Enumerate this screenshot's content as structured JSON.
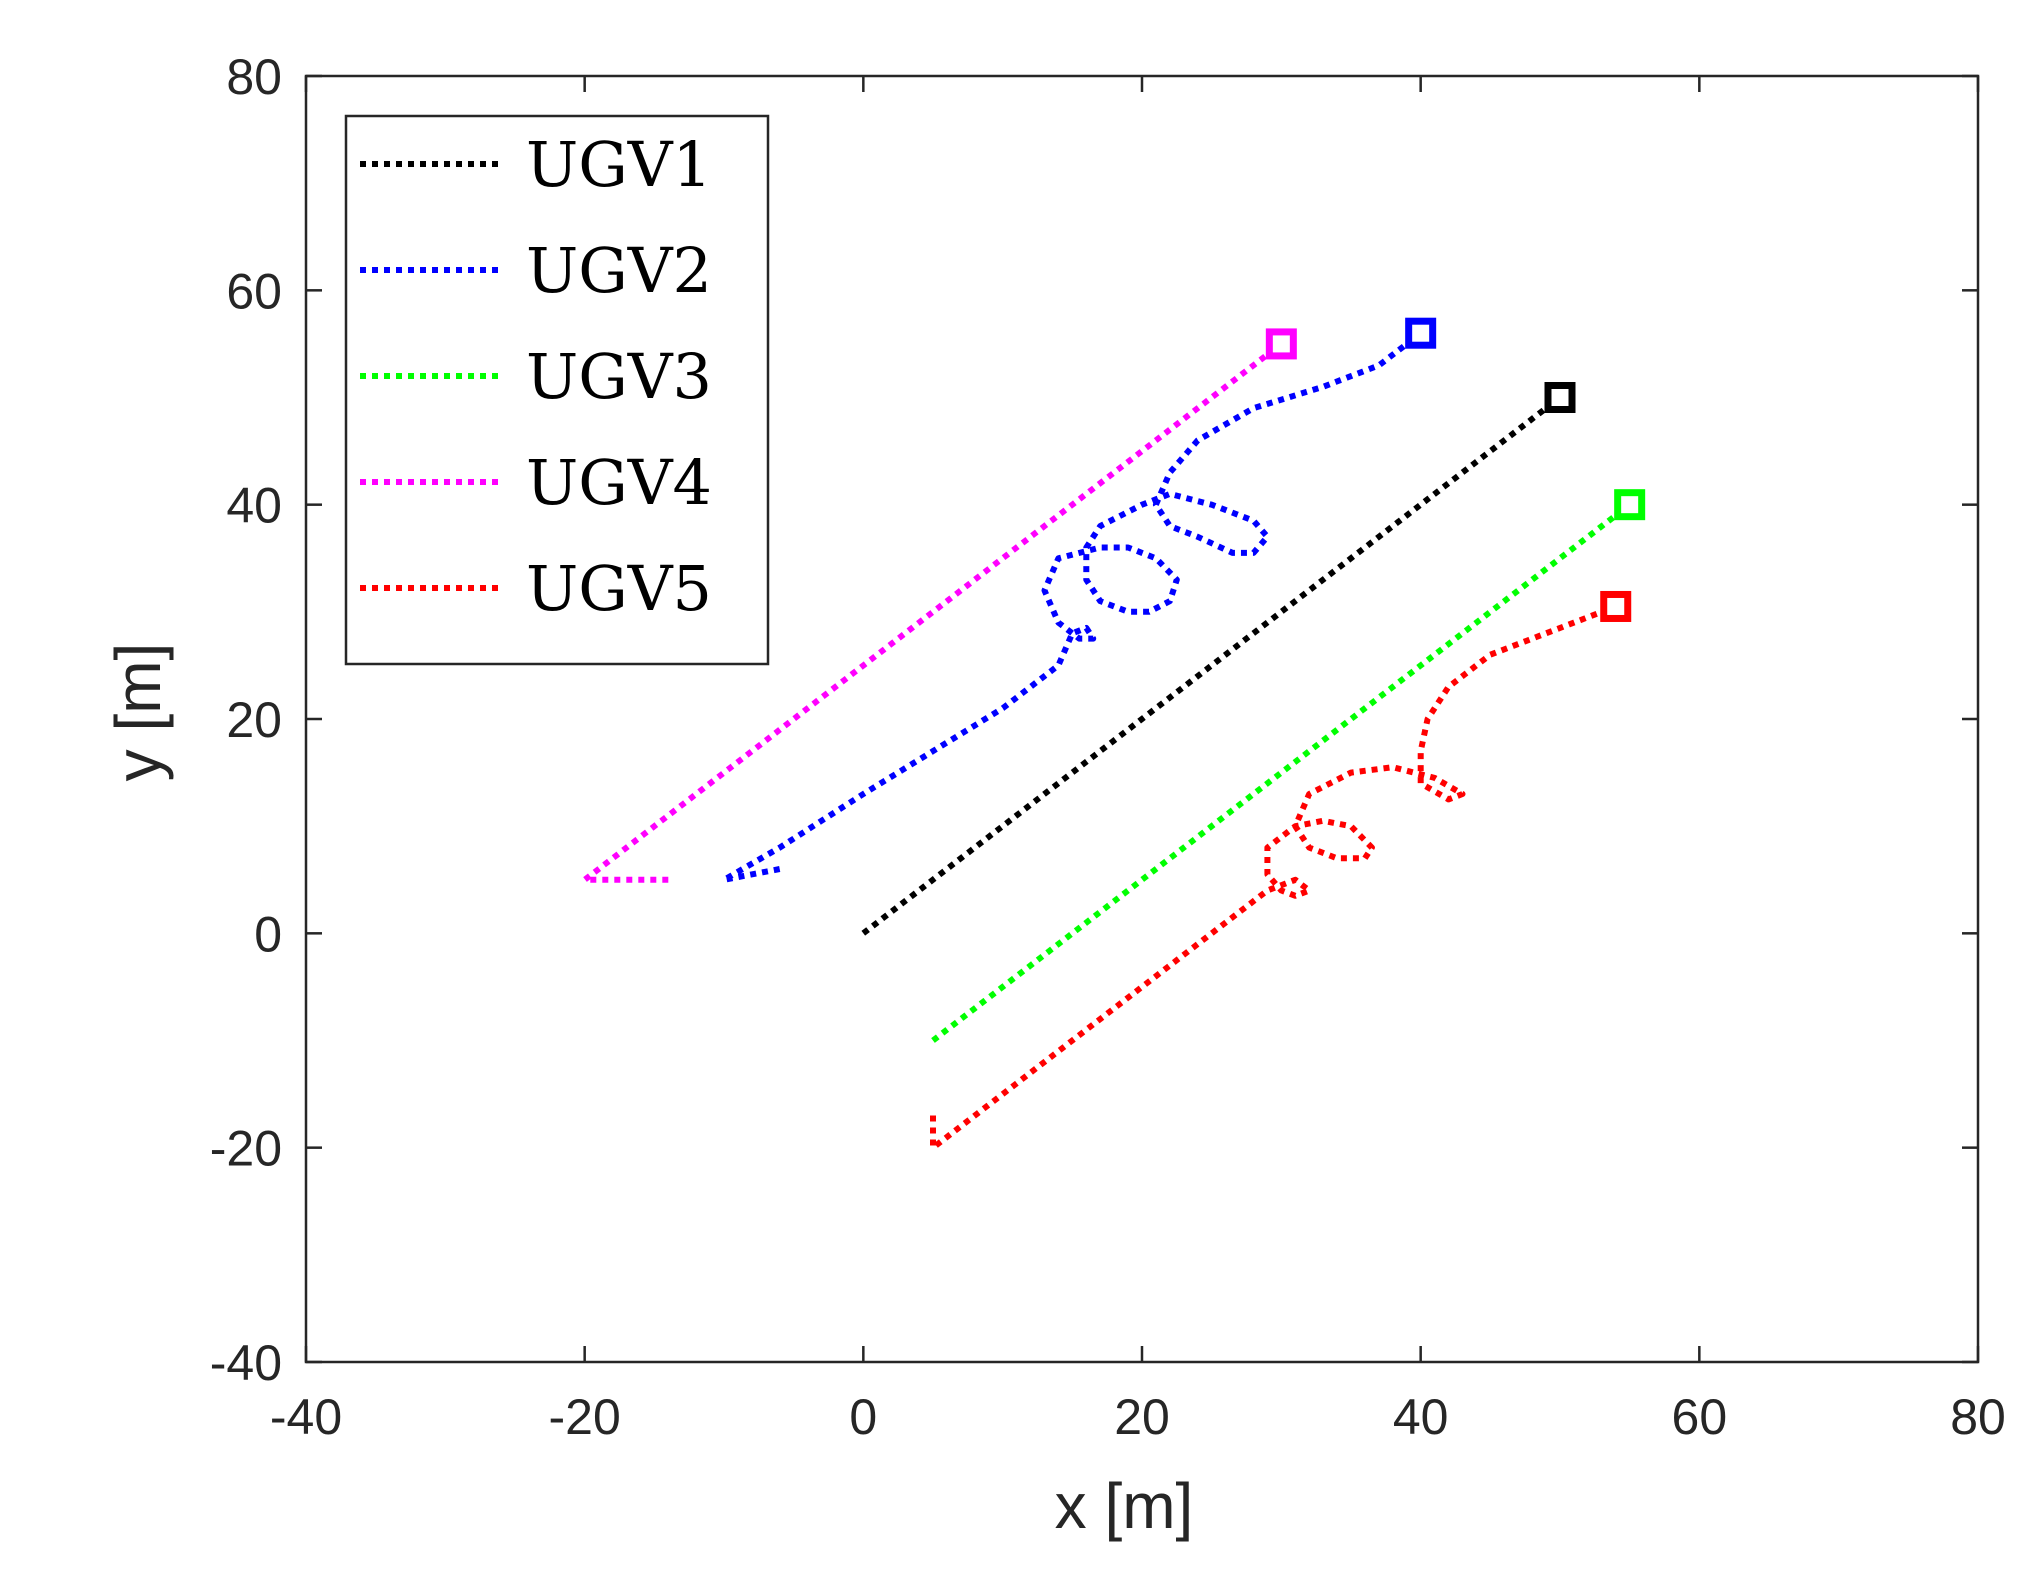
{
  "chart_data": {
    "type": "line",
    "title": "",
    "xlabel": "x [m]",
    "ylabel": "y [m]",
    "xlim": [
      -40,
      80
    ],
    "ylim": [
      -40,
      80
    ],
    "xticks": [
      -40,
      -20,
      0,
      20,
      40,
      60,
      80
    ],
    "yticks": [
      -40,
      -20,
      0,
      20,
      40,
      60,
      80
    ],
    "xtick_labels": [
      "-40",
      "-20",
      "0",
      "20",
      "40",
      "60",
      "80"
    ],
    "ytick_labels": [
      "-40",
      "-20",
      "0",
      "20",
      "40",
      "60",
      "80"
    ],
    "grid": false,
    "legend_position": "top-left",
    "series": [
      {
        "name": "UGV1",
        "color": "#000000",
        "points": [
          [
            0,
            0
          ],
          [
            50,
            50
          ]
        ],
        "end_marker": [
          50,
          50
        ]
      },
      {
        "name": "UGV2",
        "color": "#0000ff",
        "points": [
          [
            -6,
            6
          ],
          [
            -10,
            5
          ],
          [
            -6,
            8
          ],
          [
            0,
            13
          ],
          [
            5,
            17
          ],
          [
            10,
            21
          ],
          [
            14,
            25
          ],
          [
            15,
            28
          ],
          [
            16,
            28.5
          ],
          [
            16.5,
            27.5
          ],
          [
            15.5,
            27.5
          ],
          [
            14,
            29
          ],
          [
            13,
            32
          ],
          [
            14,
            35
          ],
          [
            17,
            36
          ],
          [
            19,
            36
          ],
          [
            21,
            35
          ],
          [
            22.5,
            33
          ],
          [
            22,
            31
          ],
          [
            20.5,
            30
          ],
          [
            19,
            30
          ],
          [
            17,
            31
          ],
          [
            16,
            33
          ],
          [
            16,
            36
          ],
          [
            17,
            38
          ],
          [
            20,
            40
          ],
          [
            22,
            41
          ],
          [
            25,
            40
          ],
          [
            28,
            38.5
          ],
          [
            29,
            37
          ],
          [
            28,
            35.5
          ],
          [
            26.5,
            35.5
          ],
          [
            24,
            37
          ],
          [
            22,
            38
          ],
          [
            21,
            40
          ],
          [
            22,
            43
          ],
          [
            24,
            46
          ],
          [
            28,
            49
          ],
          [
            33,
            51
          ],
          [
            37,
            53
          ],
          [
            40,
            56
          ]
        ],
        "end_marker": [
          40,
          56
        ]
      },
      {
        "name": "UGV3",
        "color": "#00ff00",
        "points": [
          [
            5,
            -10
          ],
          [
            6,
            -9
          ],
          [
            55,
            40
          ]
        ],
        "end_marker": [
          55,
          40
        ]
      },
      {
        "name": "UGV4",
        "color": "#ff00ff",
        "points": [
          [
            -14,
            5
          ],
          [
            -20,
            5
          ],
          [
            30,
            55
          ]
        ],
        "end_marker": [
          30,
          55
        ]
      },
      {
        "name": "UGV5",
        "color": "#ff0000",
        "points": [
          [
            5,
            -17
          ],
          [
            5,
            -20
          ],
          [
            10,
            -15
          ],
          [
            15,
            -10
          ],
          [
            20,
            -5
          ],
          [
            25,
            0
          ],
          [
            29,
            4
          ],
          [
            31,
            5
          ],
          [
            32,
            4
          ],
          [
            31,
            3.5
          ],
          [
            30,
            4
          ],
          [
            29,
            5.5
          ],
          [
            29,
            8
          ],
          [
            31,
            10
          ],
          [
            33,
            10.5
          ],
          [
            35,
            10
          ],
          [
            36.5,
            8
          ],
          [
            36,
            7
          ],
          [
            34,
            7
          ],
          [
            32,
            8
          ],
          [
            31,
            10
          ],
          [
            32,
            13
          ],
          [
            35,
            15
          ],
          [
            38,
            15.5
          ],
          [
            41,
            14.5
          ],
          [
            43,
            13
          ],
          [
            42,
            12.5
          ],
          [
            40,
            14
          ],
          [
            40,
            17
          ],
          [
            40.5,
            20
          ],
          [
            42,
            23
          ],
          [
            45,
            26
          ],
          [
            49,
            28
          ],
          [
            54,
            30.5
          ]
        ],
        "end_marker": [
          54,
          30.5
        ]
      }
    ]
  }
}
